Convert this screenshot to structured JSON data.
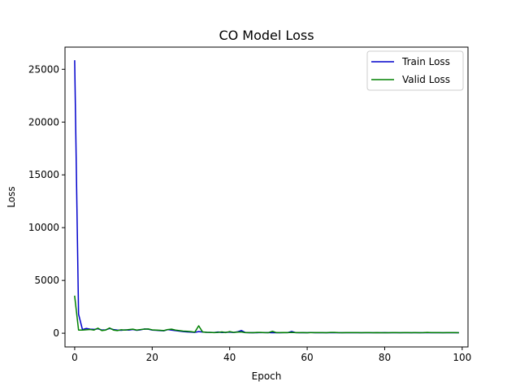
{
  "chart_data": {
    "type": "line",
    "title": "CO Model Loss",
    "xlabel": "Epoch",
    "ylabel": "Loss",
    "xlim": [
      -2.5,
      101.5
    ],
    "ylim": [
      -1300,
      27100
    ],
    "xticks": [
      0,
      20,
      40,
      60,
      80,
      100
    ],
    "xtick_labels": [
      "0",
      "20",
      "40",
      "60",
      "80",
      "100"
    ],
    "yticks": [
      0,
      5000,
      10000,
      15000,
      20000,
      25000
    ],
    "ytick_labels": [
      "0",
      "5000",
      "10000",
      "15000",
      "20000",
      "25000"
    ],
    "grid": false,
    "legend_position": "top-right",
    "x": [
      0,
      1,
      2,
      3,
      4,
      5,
      6,
      7,
      8,
      9,
      10,
      11,
      12,
      13,
      14,
      15,
      16,
      17,
      18,
      19,
      20,
      21,
      22,
      23,
      24,
      25,
      26,
      27,
      28,
      29,
      30,
      31,
      32,
      33,
      34,
      35,
      36,
      37,
      38,
      39,
      40,
      41,
      42,
      43,
      44,
      45,
      46,
      47,
      48,
      49,
      50,
      51,
      52,
      53,
      54,
      55,
      56,
      57,
      58,
      59,
      60,
      61,
      62,
      63,
      64,
      65,
      66,
      67,
      68,
      69,
      70,
      71,
      72,
      73,
      74,
      75,
      76,
      77,
      78,
      79,
      80,
      81,
      82,
      83,
      84,
      85,
      86,
      87,
      88,
      89,
      90,
      91,
      92,
      93,
      94,
      95,
      96,
      97,
      98,
      99
    ],
    "series": [
      {
        "name": "Train Loss",
        "color": "#0000cc",
        "values": [
          25800,
          1800,
          350,
          450,
          380,
          360,
          420,
          300,
          320,
          450,
          350,
          300,
          280,
          320,
          300,
          350,
          280,
          320,
          400,
          380,
          300,
          280,
          250,
          230,
          340,
          300,
          250,
          200,
          150,
          120,
          100,
          80,
          150,
          110,
          90,
          80,
          70,
          110,
          70,
          90,
          100,
          70,
          130,
          250,
          70,
          50,
          60,
          50,
          70,
          60,
          60,
          50,
          60,
          50,
          60,
          60,
          160,
          60,
          50,
          60,
          50,
          70,
          50,
          50,
          50,
          50,
          60,
          50,
          50,
          50,
          50,
          50,
          50,
          50,
          50,
          50,
          50,
          50,
          50,
          50,
          60,
          50,
          50,
          50,
          50,
          50,
          50,
          50,
          50,
          50,
          50,
          60,
          50,
          50,
          50,
          50,
          50,
          50,
          50,
          50
        ]
      },
      {
        "name": "Valid Loss",
        "color": "#008000",
        "values": [
          3500,
          300,
          300,
          330,
          350,
          300,
          480,
          250,
          300,
          500,
          300,
          250,
          330,
          300,
          350,
          380,
          300,
          350,
          380,
          400,
          320,
          300,
          280,
          250,
          350,
          380,
          300,
          250,
          200,
          180,
          150,
          100,
          700,
          120,
          90,
          80,
          60,
          80,
          120,
          60,
          150,
          80,
          100,
          120,
          60,
          60,
          50,
          80,
          80,
          60,
          50,
          180,
          60,
          60,
          70,
          60,
          80,
          60,
          60,
          60,
          50,
          60,
          60,
          60,
          60,
          50,
          80,
          80,
          60,
          50,
          60,
          60,
          60,
          60,
          50,
          60,
          60,
          50,
          60,
          50,
          50,
          50,
          60,
          60,
          50,
          60,
          60,
          50,
          60,
          50,
          60,
          80,
          60,
          60,
          60,
          50,
          60,
          60,
          60,
          50
        ]
      }
    ]
  }
}
